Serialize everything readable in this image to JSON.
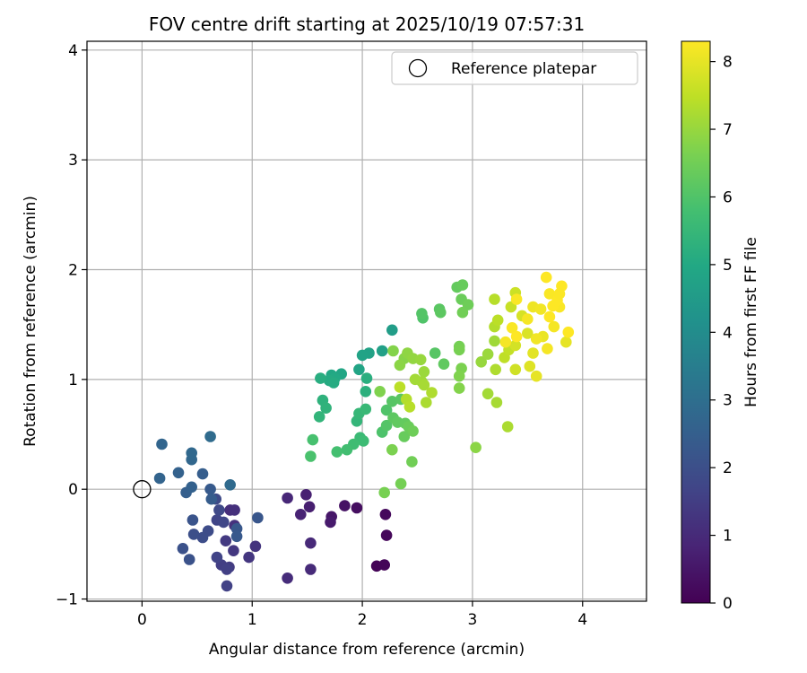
{
  "chart_data": {
    "type": "scatter",
    "title": "FOV centre drift starting at 2025/10/19 07:57:31",
    "xlabel": "Angular distance from reference (arcmin)",
    "ylabel": "Rotation from reference (arcmin)",
    "xlim": [
      -0.5,
      4.58
    ],
    "ylim": [
      -1.02,
      4.08
    ],
    "xticks": [
      0,
      1,
      2,
      3,
      4
    ],
    "yticks": [
      -1,
      0,
      1,
      2,
      3,
      4
    ],
    "grid": true,
    "legend": {
      "location": "top-right",
      "entries": [
        "Reference platepar"
      ]
    },
    "reference_point": {
      "x": 0,
      "y": 0,
      "label": "Reference platepar"
    },
    "colorbar": {
      "label": "Hours from first FF file",
      "range": [
        0,
        8.3
      ],
      "ticks": [
        0,
        1,
        2,
        3,
        4,
        5,
        6,
        7,
        8
      ],
      "colormap": "viridis"
    },
    "series": [
      {
        "name": "FOV centre drift",
        "points": [
          {
            "x": 2.13,
            "y": -0.7,
            "c": 0.05
          },
          {
            "x": 2.2,
            "y": -0.69,
            "c": 0.1
          },
          {
            "x": 2.22,
            "y": -0.42,
            "c": 0.15
          },
          {
            "x": 2.21,
            "y": -0.23,
            "c": 0.2
          },
          {
            "x": 1.95,
            "y": -0.17,
            "c": 0.3
          },
          {
            "x": 1.84,
            "y": -0.15,
            "c": 0.4
          },
          {
            "x": 1.72,
            "y": -0.25,
            "c": 0.5
          },
          {
            "x": 1.71,
            "y": -0.3,
            "c": 0.6
          },
          {
            "x": 1.52,
            "y": -0.16,
            "c": 0.7
          },
          {
            "x": 1.49,
            "y": -0.05,
            "c": 0.75
          },
          {
            "x": 1.44,
            "y": -0.23,
            "c": 0.8
          },
          {
            "x": 1.32,
            "y": -0.08,
            "c": 0.9
          },
          {
            "x": 1.53,
            "y": -0.49,
            "c": 0.95
          },
          {
            "x": 1.53,
            "y": -0.73,
            "c": 1.0
          },
          {
            "x": 1.32,
            "y": -0.81,
            "c": 1.05
          },
          {
            "x": 0.8,
            "y": -0.19,
            "c": 1.1
          },
          {
            "x": 0.84,
            "y": -0.19,
            "c": 1.15
          },
          {
            "x": 0.84,
            "y": -0.33,
            "c": 1.2
          },
          {
            "x": 1.03,
            "y": -0.52,
            "c": 1.25
          },
          {
            "x": 0.97,
            "y": -0.62,
            "c": 1.3
          },
          {
            "x": 0.83,
            "y": -0.56,
            "c": 1.35
          },
          {
            "x": 0.76,
            "y": -0.47,
            "c": 1.4
          },
          {
            "x": 0.79,
            "y": -0.71,
            "c": 1.45
          },
          {
            "x": 0.72,
            "y": -0.69,
            "c": 1.5
          },
          {
            "x": 0.77,
            "y": -0.73,
            "c": 1.55
          },
          {
            "x": 0.77,
            "y": -0.88,
            "c": 1.6
          },
          {
            "x": 0.68,
            "y": -0.62,
            "c": 1.65
          },
          {
            "x": 0.68,
            "y": -0.28,
            "c": 1.7
          },
          {
            "x": 0.74,
            "y": -0.3,
            "c": 1.75
          },
          {
            "x": 0.7,
            "y": -0.19,
            "c": 1.8
          },
          {
            "x": 0.67,
            "y": -0.09,
            "c": 1.85
          },
          {
            "x": 0.6,
            "y": -0.38,
            "c": 1.9
          },
          {
            "x": 0.55,
            "y": -0.44,
            "c": 1.95
          },
          {
            "x": 0.47,
            "y": -0.41,
            "c": 2.0
          },
          {
            "x": 0.37,
            "y": -0.54,
            "c": 2.05
          },
          {
            "x": 0.43,
            "y": -0.64,
            "c": 2.1
          },
          {
            "x": 0.46,
            "y": -0.28,
            "c": 2.15
          },
          {
            "x": 1.05,
            "y": -0.26,
            "c": 2.2
          },
          {
            "x": 0.86,
            "y": -0.36,
            "c": 2.25
          },
          {
            "x": 0.86,
            "y": -0.43,
            "c": 2.3
          },
          {
            "x": 0.62,
            "y": 0.0,
            "c": 2.35
          },
          {
            "x": 0.63,
            "y": -0.09,
            "c": 2.4
          },
          {
            "x": 0.55,
            "y": 0.14,
            "c": 2.45
          },
          {
            "x": 0.4,
            "y": -0.03,
            "c": 2.5
          },
          {
            "x": 0.45,
            "y": 0.02,
            "c": 2.55
          },
          {
            "x": 0.33,
            "y": 0.15,
            "c": 2.6
          },
          {
            "x": 0.16,
            "y": 0.1,
            "c": 2.65
          },
          {
            "x": 0.18,
            "y": 0.41,
            "c": 2.7
          },
          {
            "x": 0.45,
            "y": 0.27,
            "c": 2.75
          },
          {
            "x": 0.45,
            "y": 0.33,
            "c": 2.8
          },
          {
            "x": 0.8,
            "y": 0.04,
            "c": 2.85
          },
          {
            "x": 0.62,
            "y": 0.48,
            "c": 2.9
          },
          {
            "x": 2.27,
            "y": 1.45,
            "c": 4.6
          },
          {
            "x": 2.18,
            "y": 1.26,
            "c": 4.7
          },
          {
            "x": 2.06,
            "y": 1.24,
            "c": 4.75
          },
          {
            "x": 2.0,
            "y": 1.22,
            "c": 4.8
          },
          {
            "x": 1.97,
            "y": 1.09,
            "c": 4.85
          },
          {
            "x": 1.81,
            "y": 1.05,
            "c": 4.9
          },
          {
            "x": 1.72,
            "y": 1.04,
            "c": 4.95
          },
          {
            "x": 1.75,
            "y": 1.01,
            "c": 5.0
          },
          {
            "x": 1.7,
            "y": 0.99,
            "c": 5.05
          },
          {
            "x": 1.74,
            "y": 0.97,
            "c": 5.1
          },
          {
            "x": 1.62,
            "y": 1.01,
            "c": 5.15
          },
          {
            "x": 2.04,
            "y": 1.01,
            "c": 5.2
          },
          {
            "x": 2.03,
            "y": 0.89,
            "c": 5.25
          },
          {
            "x": 1.64,
            "y": 0.81,
            "c": 5.3
          },
          {
            "x": 1.67,
            "y": 0.74,
            "c": 5.35
          },
          {
            "x": 1.61,
            "y": 0.66,
            "c": 5.4
          },
          {
            "x": 1.95,
            "y": 0.62,
            "c": 5.45
          },
          {
            "x": 1.97,
            "y": 0.69,
            "c": 5.5
          },
          {
            "x": 2.03,
            "y": 0.73,
            "c": 5.55
          },
          {
            "x": 1.98,
            "y": 0.47,
            "c": 5.6
          },
          {
            "x": 2.01,
            "y": 0.44,
            "c": 5.65
          },
          {
            "x": 1.92,
            "y": 0.41,
            "c": 5.7
          },
          {
            "x": 1.86,
            "y": 0.36,
            "c": 5.75
          },
          {
            "x": 1.77,
            "y": 0.34,
            "c": 5.8
          },
          {
            "x": 1.55,
            "y": 0.45,
            "c": 5.85
          },
          {
            "x": 1.53,
            "y": 0.3,
            "c": 5.9
          },
          {
            "x": 2.18,
            "y": 0.52,
            "c": 5.95
          },
          {
            "x": 2.22,
            "y": 0.72,
            "c": 6.0
          },
          {
            "x": 2.22,
            "y": 0.58,
            "c": 6.05
          },
          {
            "x": 2.27,
            "y": 0.8,
            "c": 6.1
          },
          {
            "x": 2.35,
            "y": 0.82,
            "c": 6.15
          },
          {
            "x": 2.28,
            "y": 0.65,
            "c": 6.2
          },
          {
            "x": 2.32,
            "y": 0.61,
            "c": 6.25
          },
          {
            "x": 2.39,
            "y": 0.6,
            "c": 6.3
          },
          {
            "x": 2.38,
            "y": 0.48,
            "c": 6.35
          },
          {
            "x": 2.42,
            "y": 0.57,
            "c": 6.4
          },
          {
            "x": 2.46,
            "y": 0.53,
            "c": 6.45
          },
          {
            "x": 2.45,
            "y": 0.25,
            "c": 6.5
          },
          {
            "x": 2.35,
            "y": 0.05,
            "c": 6.55
          },
          {
            "x": 2.2,
            "y": -0.03,
            "c": 6.6
          },
          {
            "x": 2.27,
            "y": 0.36,
            "c": 6.65
          },
          {
            "x": 2.16,
            "y": 0.89,
            "c": 6.7
          },
          {
            "x": 2.28,
            "y": 1.26,
            "c": 6.75
          },
          {
            "x": 2.38,
            "y": 1.19,
            "c": 6.8
          },
          {
            "x": 2.34,
            "y": 1.13,
            "c": 6.85
          },
          {
            "x": 2.41,
            "y": 1.24,
            "c": 6.9
          },
          {
            "x": 2.46,
            "y": 1.19,
            "c": 6.95
          },
          {
            "x": 2.53,
            "y": 1.18,
            "c": 7.0
          },
          {
            "x": 2.56,
            "y": 1.07,
            "c": 7.05
          },
          {
            "x": 2.54,
            "y": 0.98,
            "c": 7.1
          },
          {
            "x": 2.48,
            "y": 1.0,
            "c": 7.15
          },
          {
            "x": 2.56,
            "y": 0.95,
            "c": 7.2
          },
          {
            "x": 2.58,
            "y": 0.79,
            "c": 7.25
          },
          {
            "x": 2.63,
            "y": 0.88,
            "c": 7.3
          },
          {
            "x": 2.4,
            "y": 0.82,
            "c": 7.35
          },
          {
            "x": 2.43,
            "y": 0.75,
            "c": 7.4
          },
          {
            "x": 2.34,
            "y": 0.93,
            "c": 7.45
          },
          {
            "x": 2.55,
            "y": 1.56,
            "c": 6.0
          },
          {
            "x": 2.54,
            "y": 1.6,
            "c": 6.05
          },
          {
            "x": 2.66,
            "y": 1.24,
            "c": 6.1
          },
          {
            "x": 2.7,
            "y": 1.64,
            "c": 6.15
          },
          {
            "x": 2.71,
            "y": 1.61,
            "c": 6.2
          },
          {
            "x": 2.74,
            "y": 1.14,
            "c": 6.25
          },
          {
            "x": 2.86,
            "y": 1.84,
            "c": 6.3
          },
          {
            "x": 2.91,
            "y": 1.86,
            "c": 6.35
          },
          {
            "x": 2.9,
            "y": 1.73,
            "c": 6.4
          },
          {
            "x": 2.96,
            "y": 1.68,
            "c": 6.45
          },
          {
            "x": 2.91,
            "y": 1.61,
            "c": 6.5
          },
          {
            "x": 2.88,
            "y": 1.3,
            "c": 6.55
          },
          {
            "x": 2.88,
            "y": 1.27,
            "c": 6.6
          },
          {
            "x": 2.9,
            "y": 1.1,
            "c": 6.65
          },
          {
            "x": 2.88,
            "y": 1.03,
            "c": 6.7
          },
          {
            "x": 2.88,
            "y": 0.92,
            "c": 6.75
          },
          {
            "x": 3.03,
            "y": 0.38,
            "c": 6.85
          },
          {
            "x": 3.08,
            "y": 1.16,
            "c": 7.0
          },
          {
            "x": 3.14,
            "y": 1.23,
            "c": 7.05
          },
          {
            "x": 3.2,
            "y": 1.35,
            "c": 7.1
          },
          {
            "x": 3.14,
            "y": 0.87,
            "c": 7.15
          },
          {
            "x": 3.22,
            "y": 0.79,
            "c": 7.2
          },
          {
            "x": 3.32,
            "y": 0.57,
            "c": 7.25
          },
          {
            "x": 3.21,
            "y": 1.09,
            "c": 7.3
          },
          {
            "x": 3.2,
            "y": 1.48,
            "c": 7.35
          },
          {
            "x": 3.2,
            "y": 1.73,
            "c": 7.4
          },
          {
            "x": 3.23,
            "y": 1.54,
            "c": 7.45
          },
          {
            "x": 3.29,
            "y": 1.2,
            "c": 7.5
          },
          {
            "x": 3.33,
            "y": 1.27,
            "c": 7.55
          },
          {
            "x": 3.35,
            "y": 1.66,
            "c": 7.6
          },
          {
            "x": 3.39,
            "y": 1.79,
            "c": 7.65
          },
          {
            "x": 3.39,
            "y": 1.09,
            "c": 7.7
          },
          {
            "x": 3.39,
            "y": 1.31,
            "c": 7.75
          },
          {
            "x": 3.45,
            "y": 1.58,
            "c": 7.8
          },
          {
            "x": 3.5,
            "y": 1.42,
            "c": 7.85
          },
          {
            "x": 3.52,
            "y": 1.12,
            "c": 7.9
          },
          {
            "x": 3.55,
            "y": 1.24,
            "c": 7.95
          },
          {
            "x": 3.58,
            "y": 1.03,
            "c": 8.0
          },
          {
            "x": 3.64,
            "y": 1.39,
            "c": 8.05
          },
          {
            "x": 3.55,
            "y": 1.66,
            "c": 8.1
          },
          {
            "x": 3.62,
            "y": 1.64,
            "c": 8.15
          },
          {
            "x": 3.68,
            "y": 1.28,
            "c": 8.2
          },
          {
            "x": 3.79,
            "y": 1.66,
            "c": 8.25
          },
          {
            "x": 3.81,
            "y": 1.85,
            "c": 8.3
          },
          {
            "x": 3.85,
            "y": 1.34,
            "c": 8.0
          },
          {
            "x": 3.87,
            "y": 1.43,
            "c": 8.3
          },
          {
            "x": 3.3,
            "y": 1.34,
            "c": 8.2
          },
          {
            "x": 3.36,
            "y": 1.47,
            "c": 8.25
          },
          {
            "x": 3.4,
            "y": 1.39,
            "c": 8.3
          },
          {
            "x": 3.5,
            "y": 1.55,
            "c": 8.2
          },
          {
            "x": 3.67,
            "y": 1.93,
            "c": 8.3
          },
          {
            "x": 3.7,
            "y": 1.78,
            "c": 8.25
          },
          {
            "x": 3.73,
            "y": 1.67,
            "c": 8.3
          },
          {
            "x": 3.74,
            "y": 1.48,
            "c": 8.2
          },
          {
            "x": 3.77,
            "y": 1.72,
            "c": 8.3
          },
          {
            "x": 3.79,
            "y": 1.78,
            "c": 8.28
          },
          {
            "x": 3.7,
            "y": 1.57,
            "c": 8.3
          },
          {
            "x": 3.4,
            "y": 1.73,
            "c": 8.25
          },
          {
            "x": 3.58,
            "y": 1.37,
            "c": 8.15
          }
        ]
      }
    ]
  }
}
